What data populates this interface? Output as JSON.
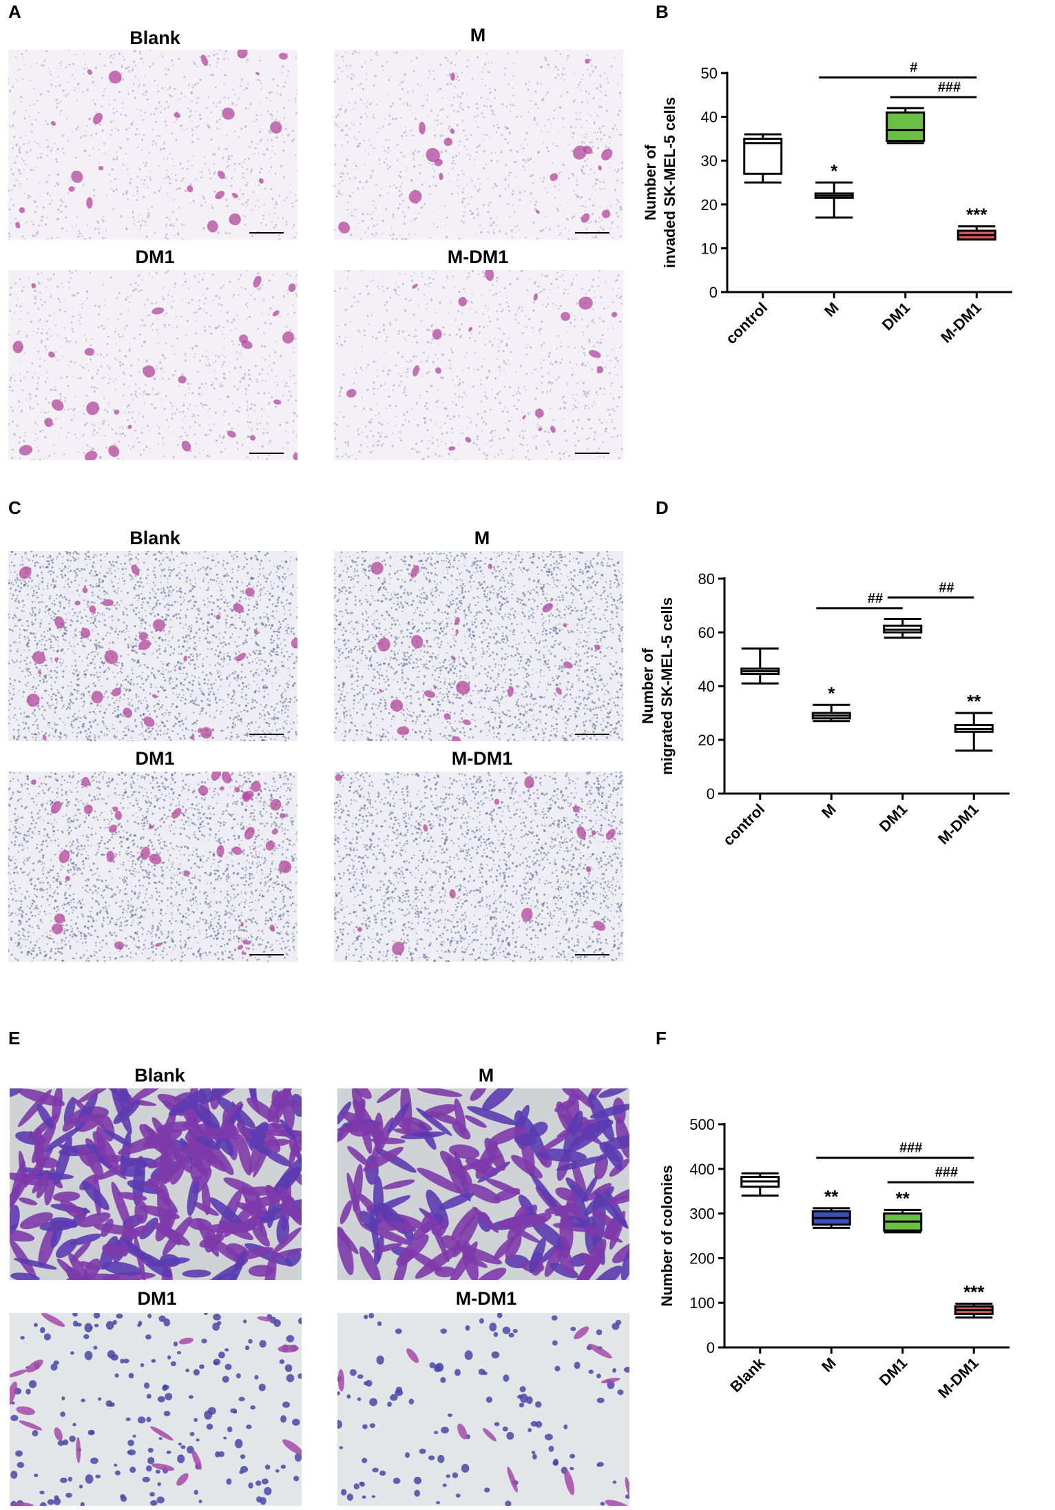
{
  "panels": {
    "A": {
      "letter": "A",
      "titles": [
        "Blank",
        "M",
        "DM1",
        "M-DM1"
      ]
    },
    "B": {
      "letter": "B"
    },
    "C": {
      "letter": "C",
      "titles": [
        "Blank",
        "M",
        "DM1",
        "M-DM1"
      ]
    },
    "D": {
      "letter": "D"
    },
    "E": {
      "letter": "E",
      "titles": [
        "Blank",
        "M",
        "DM1",
        "M-DM1"
      ]
    },
    "F": {
      "letter": "F"
    }
  },
  "chart_data": [
    {
      "panel": "B",
      "type": "boxplot",
      "ylabel_line1": "Number of",
      "ylabel_line2": "invaded SK-MEL-5 cells",
      "ylim": [
        0,
        50
      ],
      "yticks": [
        0,
        10,
        20,
        30,
        40,
        50
      ],
      "categories": [
        "control",
        "M",
        "DM1",
        "M-DM1"
      ],
      "series": [
        {
          "category": "control",
          "min": 25,
          "q1": 27,
          "median": 34,
          "q3": 35,
          "max": 36,
          "fill": "#ffffff",
          "sig": ""
        },
        {
          "category": "M",
          "min": 17,
          "q1": 21.5,
          "median": 22,
          "q3": 22.5,
          "max": 25,
          "fill": "#ffffff",
          "sig": "*"
        },
        {
          "category": "DM1",
          "min": 34,
          "q1": 34.5,
          "median": 37,
          "q3": 41,
          "max": 42,
          "fill": "#6abf45",
          "sig": ""
        },
        {
          "category": "M-DM1",
          "min": 12,
          "q1": 12,
          "median": 13,
          "q3": 14,
          "max": 15,
          "fill": "#e05555",
          "sig": "***"
        }
      ],
      "brackets": [
        {
          "from": "M",
          "to": "M-DM1",
          "label": "#",
          "y": 49
        },
        {
          "from": "DM1",
          "to": "M-DM1",
          "label": "###",
          "y": 44.5
        }
      ]
    },
    {
      "panel": "D",
      "type": "boxplot",
      "ylabel_line1": "Number of",
      "ylabel_line2": "migrated SK-MEL-5 cells",
      "ylim": [
        0,
        80
      ],
      "yticks": [
        0,
        20,
        40,
        60,
        80
      ],
      "categories": [
        "control",
        "M",
        "DM1",
        "M-DM1"
      ],
      "series": [
        {
          "category": "control",
          "min": 41,
          "q1": 44.5,
          "median": 45.5,
          "q3": 46.5,
          "max": 54,
          "fill": "#ffffff",
          "sig": ""
        },
        {
          "category": "M",
          "min": 27,
          "q1": 28,
          "median": 29,
          "q3": 30,
          "max": 33,
          "fill": "#ffffff",
          "sig": "*"
        },
        {
          "category": "DM1",
          "min": 58,
          "q1": 60,
          "median": 61,
          "q3": 62.5,
          "max": 65,
          "fill": "#ffffff",
          "sig": ""
        },
        {
          "category": "M-DM1",
          "min": 16,
          "q1": 23,
          "median": 24,
          "q3": 25.5,
          "max": 30,
          "fill": "#ffffff",
          "sig": "**"
        }
      ],
      "brackets": [
        {
          "from": "M",
          "to": "DM1",
          "label": "##",
          "y": 69
        },
        {
          "from": "DM1",
          "to": "M-DM1",
          "label": "##",
          "y": 73
        }
      ]
    },
    {
      "panel": "F",
      "type": "boxplot",
      "ylabel_line1": "",
      "ylabel_line2": "Number of colonies",
      "ylim": [
        0,
        500
      ],
      "yticks": [
        0,
        100,
        200,
        300,
        400,
        500
      ],
      "categories": [
        "Blank",
        "M",
        "DM1",
        "M-DM1"
      ],
      "series": [
        {
          "category": "Blank",
          "min": 340,
          "q1": 360,
          "median": 372,
          "q3": 382,
          "max": 390,
          "fill": "#ffffff",
          "sig": ""
        },
        {
          "category": "M",
          "min": 268,
          "q1": 275,
          "median": 290,
          "q3": 305,
          "max": 312,
          "fill": "#3a4fb8",
          "sig": "**"
        },
        {
          "category": "DM1",
          "min": 258,
          "q1": 262,
          "median": 282,
          "q3": 300,
          "max": 308,
          "fill": "#6abf45",
          "sig": "**"
        },
        {
          "category": "M-DM1",
          "min": 67,
          "q1": 75,
          "median": 84,
          "q3": 92,
          "max": 98,
          "fill": "#e05555",
          "sig": "***"
        }
      ],
      "brackets": [
        {
          "from": "M",
          "to": "M-DM1",
          "label": "###",
          "y": 425
        },
        {
          "from": "DM1",
          "to": "M-DM1",
          "label": "###",
          "y": 370
        }
      ]
    }
  ]
}
